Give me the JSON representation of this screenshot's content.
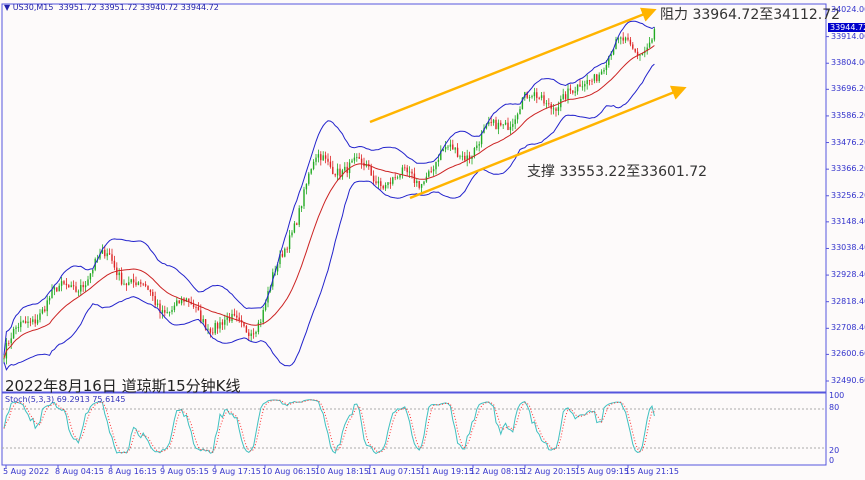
{
  "header": {
    "symbol": "US30,M15",
    "ohlc": "33951.72 33951.72 33940.72 33944.72"
  },
  "caption": "2022年8月16日 道琼斯15分钟K线",
  "annotations": {
    "resistance": "阻力 33964.72至34112.72",
    "support": "支撑 33553.22至33601.72"
  },
  "colors": {
    "bull": "#22aa22",
    "bear": "#dd2222",
    "bands": "#2222cc",
    "ma": "#cc2222",
    "arrows": "#ffb400",
    "stoch_main": "#40c0c0",
    "stoch_signal": "#ff3030",
    "axis": "#5555dd"
  },
  "chart_data": [
    {
      "type": "candlestick",
      "price_axis_ticks": [
        "34024.00",
        "33914.00",
        "33804.00",
        "33696.20",
        "33586.20",
        "33476.20",
        "33366.20",
        "33256.20",
        "33148.40",
        "33038.40",
        "32928.40",
        "32818.40",
        "32708.40",
        "32600.60",
        "32490.60"
      ],
      "current_price": "33944.72",
      "time_ticks": [
        "5 Aug 2022",
        "8 Aug 04:15",
        "8 Aug 16:15",
        "9 Aug 05:15",
        "9 Aug 17:15",
        "10 Aug 06:15",
        "10 Aug 18:15",
        "11 Aug 07:15",
        "11 Aug 19:15",
        "12 Aug 08:15",
        "12 Aug 20:15",
        "15 Aug 09:15",
        "15 Aug 21:15"
      ],
      "approx_close_at_time_ticks": [
        32600,
        32800,
        33060,
        32760,
        32740,
        32790,
        33340,
        33400,
        33320,
        33420,
        33700,
        33620,
        33890
      ],
      "last_close": 33944.72,
      "indicators": [
        "Bollinger Bands",
        "Moving Average"
      ]
    },
    {
      "type": "line",
      "label": "Stoch(5,3,3) 69.2913 75.6145",
      "y_ticks": [
        "100",
        "80",
        "20",
        "0"
      ],
      "ylim": [
        0,
        100
      ],
      "levels": [
        80,
        20
      ],
      "values_last": {
        "main": 69.2913,
        "signal": 75.6145
      }
    }
  ]
}
